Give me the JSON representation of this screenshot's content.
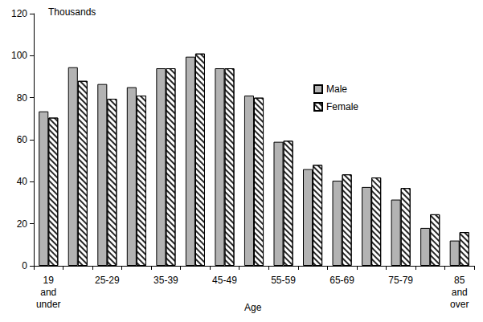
{
  "chart_data": {
    "type": "bar",
    "y_unit_label": "Thousands",
    "x_label": "Age",
    "categories": [
      "19 and under",
      null,
      "25-29",
      null,
      "35-39",
      null,
      "45-49",
      null,
      "55-59",
      null,
      "65-69",
      null,
      "75-79",
      null,
      "85 and over"
    ],
    "series": [
      {
        "name": "Male",
        "color": "#b3b3b3",
        "values": [
          73.5,
          94.5,
          86.5,
          85,
          94,
          99.5,
          94,
          81,
          59,
          46,
          40.5,
          37.5,
          31.5,
          18,
          12
        ]
      },
      {
        "name": "Female",
        "color": "#ffffff",
        "values": [
          70.5,
          88,
          79.5,
          81,
          94,
          101,
          94,
          80,
          59.5,
          48,
          43.5,
          42,
          37,
          24.5,
          16
        ]
      }
    ],
    "ylim": [
      0,
      120
    ],
    "yticks": [
      0,
      20,
      40,
      60,
      80,
      100,
      120
    ],
    "grid": false,
    "legend": "top right"
  }
}
